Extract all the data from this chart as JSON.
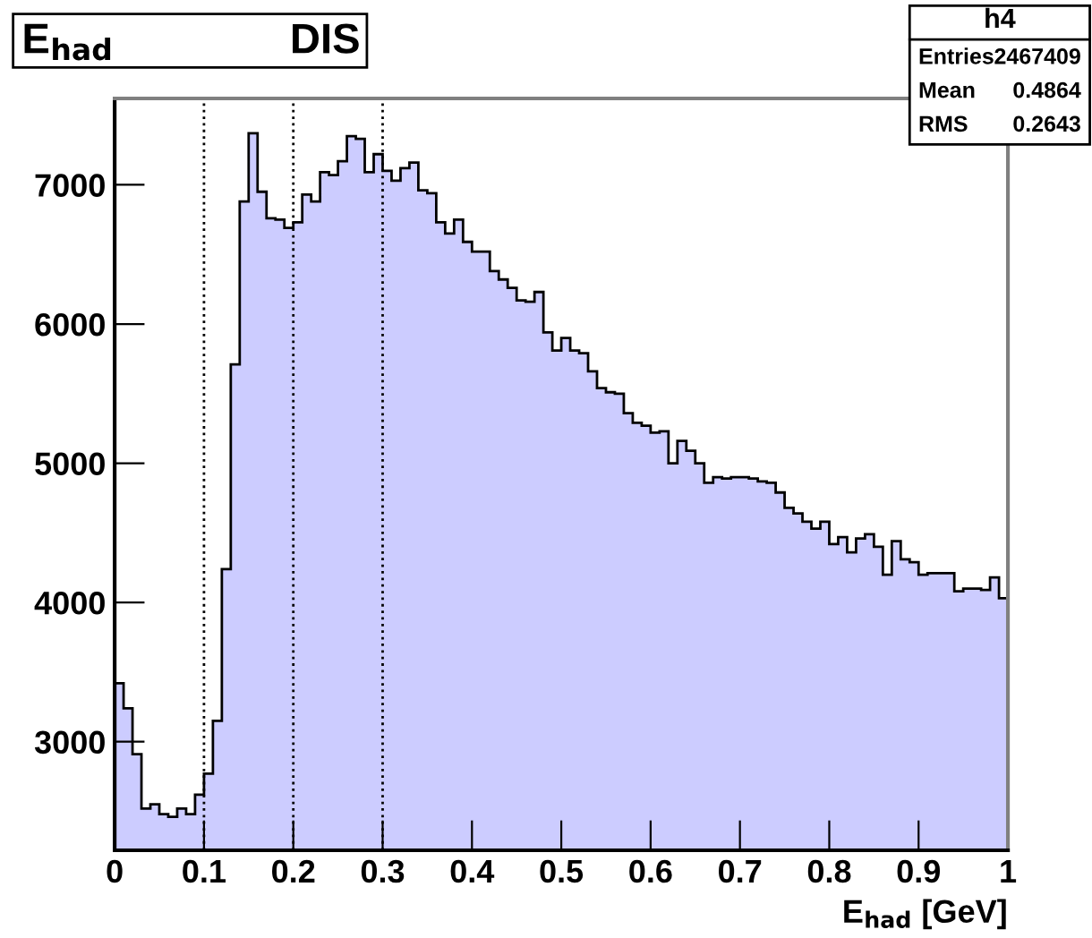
{
  "chart_data": {
    "type": "histogram",
    "title": "E$_{had}$",
    "subtitle": "DIS",
    "xlabel": "E$_{had}$ [GeV]",
    "bins": [
      0,
      0.01,
      0.02,
      0.03,
      0.04,
      0.05,
      0.06,
      0.07,
      0.08,
      0.09,
      0.1,
      0.11,
      0.12,
      0.13,
      0.14,
      0.15,
      0.16,
      0.17,
      0.18,
      0.19,
      0.2,
      0.21,
      0.22,
      0.23,
      0.24,
      0.25,
      0.26,
      0.27,
      0.28,
      0.29,
      0.3,
      0.31,
      0.32,
      0.33,
      0.34,
      0.35,
      0.36,
      0.37,
      0.38,
      0.39,
      0.4,
      0.41,
      0.42,
      0.43,
      0.44,
      0.45,
      0.46,
      0.47,
      0.48,
      0.49,
      0.5,
      0.51,
      0.52,
      0.53,
      0.54,
      0.55,
      0.56,
      0.57,
      0.58,
      0.59,
      0.6,
      0.61,
      0.62,
      0.63,
      0.64,
      0.65,
      0.66,
      0.67,
      0.68,
      0.69,
      0.7,
      0.71,
      0.72,
      0.73,
      0.74,
      0.75,
      0.76,
      0.77,
      0.78,
      0.79,
      0.8,
      0.81,
      0.82,
      0.83,
      0.84,
      0.85,
      0.86,
      0.87,
      0.88,
      0.89,
      0.9,
      0.91,
      0.92,
      0.93,
      0.94,
      0.95,
      0.96,
      0.97,
      0.98,
      0.99,
      1
    ],
    "values": [
      3420,
      3240,
      2910,
      2520,
      2550,
      2480,
      2460,
      2520,
      2480,
      2620,
      2770,
      3150,
      4240,
      5710,
      6880,
      7370,
      6950,
      6760,
      6750,
      6690,
      6730,
      6930,
      6880,
      7090,
      7070,
      7170,
      7350,
      7330,
      7090,
      7220,
      7100,
      7030,
      7120,
      7160,
      6960,
      6940,
      6730,
      6650,
      6750,
      6590,
      6520,
      6520,
      6380,
      6320,
      6260,
      6170,
      6160,
      6230,
      5940,
      5810,
      5900,
      5810,
      5790,
      5660,
      5540,
      5510,
      5500,
      5360,
      5290,
      5270,
      5220,
      5230,
      5000,
      5160,
      5090,
      5000,
      4860,
      4900,
      4890,
      4900,
      4900,
      4890,
      4870,
      4860,
      4790,
      4680,
      4640,
      4580,
      4530,
      4580,
      4420,
      4470,
      4360,
      4460,
      4490,
      4400,
      4200,
      4440,
      4310,
      4290,
      4200,
      4210,
      4210,
      4210,
      4080,
      4100,
      4100,
      4090,
      4180,
      4030
    ],
    "color": "#ccccff",
    "xlim": [
      0,
      1
    ],
    "xticks": [
      0,
      0.1,
      0.2,
      0.3,
      0.4,
      0.5,
      0.6,
      0.7,
      0.8,
      0.9,
      1
    ],
    "ylim": [
      2220,
      7620
    ],
    "yticks": [
      3000,
      4000,
      5000,
      6000,
      7000
    ],
    "grid": false,
    "legend": false,
    "ref_lines": [
      {
        "axis": "x",
        "value": 0.1,
        "line_style": "dotted",
        "color": "#000000"
      },
      {
        "axis": "x",
        "value": 0.2,
        "line_style": "dotted",
        "color": "#000000"
      },
      {
        "axis": "x",
        "value": 0.3,
        "line_style": "dotted",
        "color": "#000000"
      }
    ],
    "annotations": [
      "h4",
      "Entries 2467409",
      "Mean 0.4864",
      "RMS 0.2643"
    ]
  }
}
